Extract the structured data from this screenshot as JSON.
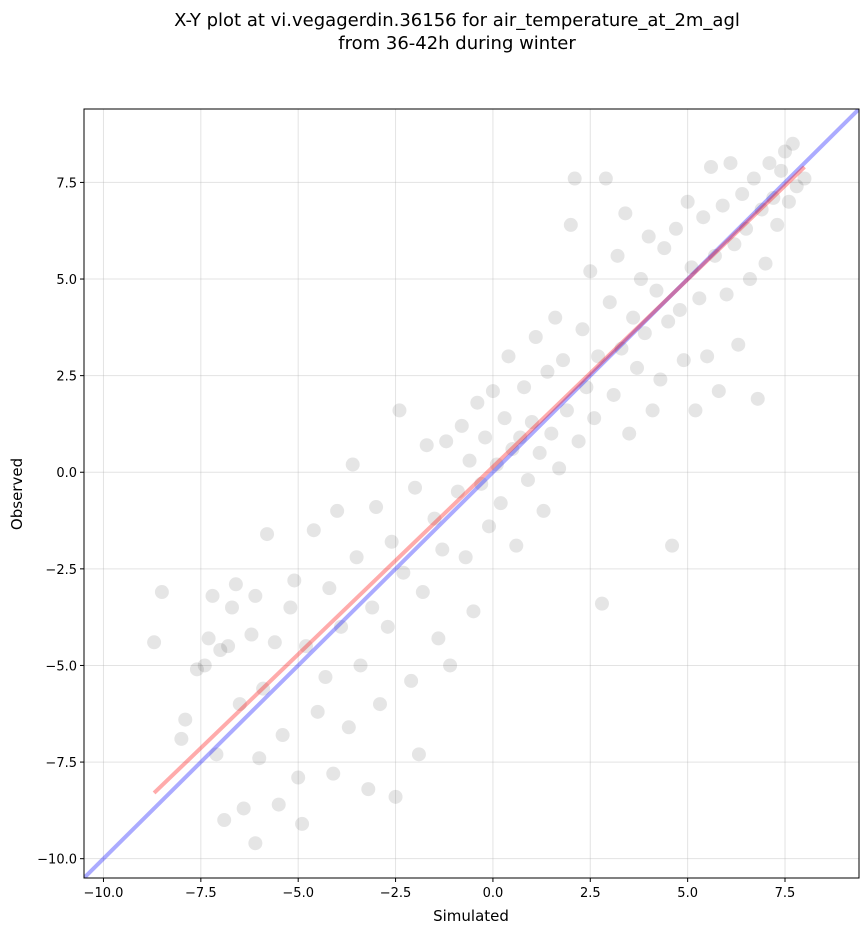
{
  "chart_data": {
    "type": "scatter",
    "title": [
      "X-Y plot at vi.vegagerdin.36156 for air_temperature_at_2m_agl",
      "from 36-42h during winter"
    ],
    "xlabel": "Simulated",
    "ylabel": "Observed",
    "xlim": [
      -10.5,
      9.4
    ],
    "ylim": [
      -10.5,
      9.4
    ],
    "xticks": [
      -10.0,
      -7.5,
      -5.0,
      -2.5,
      0.0,
      2.5,
      5.0,
      7.5
    ],
    "xtick_labels": [
      "−10.0",
      "−7.5",
      "−5.0",
      "−2.5",
      "0.0",
      "2.5",
      "5.0",
      "7.5"
    ],
    "yticks": [
      -10.0,
      -7.5,
      -5.0,
      -2.5,
      0.0,
      2.5,
      5.0,
      7.5
    ],
    "ytick_labels": [
      "−10.0",
      "−7.5",
      "−5.0",
      "−2.5",
      "0.0",
      "2.5",
      "5.0",
      "7.5"
    ],
    "grid": true,
    "point_color": "#000000",
    "point_alpha": 0.1,
    "fit_line": {
      "x": [
        -8.7,
        8.0
      ],
      "y": [
        -8.3,
        7.9
      ],
      "color": "#ff0000"
    },
    "identity_line": {
      "x": [
        -10.5,
        9.4
      ],
      "y": [
        -10.5,
        9.4
      ],
      "color": "#0000ff"
    },
    "sample_points": [
      [
        -8.7,
        -4.4
      ],
      [
        -8.5,
        -3.1
      ],
      [
        -8.0,
        -6.9
      ],
      [
        -7.9,
        -6.4
      ],
      [
        -7.6,
        -5.1
      ],
      [
        -7.4,
        -5.0
      ],
      [
        -7.3,
        -4.3
      ],
      [
        -7.2,
        -3.2
      ],
      [
        -7.1,
        -7.3
      ],
      [
        -7.0,
        -4.6
      ],
      [
        -6.9,
        -9.0
      ],
      [
        -6.8,
        -4.5
      ],
      [
        -6.7,
        -3.5
      ],
      [
        -6.6,
        -2.9
      ],
      [
        -6.5,
        -6.0
      ],
      [
        -6.4,
        -8.7
      ],
      [
        -6.2,
        -4.2
      ],
      [
        -6.1,
        -9.6
      ],
      [
        -6.1,
        -3.2
      ],
      [
        -6.0,
        -7.4
      ],
      [
        -5.9,
        -5.6
      ],
      [
        -5.8,
        -1.6
      ],
      [
        -5.6,
        -4.4
      ],
      [
        -5.5,
        -8.6
      ],
      [
        -5.4,
        -6.8
      ],
      [
        -5.2,
        -3.5
      ],
      [
        -5.1,
        -2.8
      ],
      [
        -5.0,
        -7.9
      ],
      [
        -4.9,
        -9.1
      ],
      [
        -4.8,
        -4.5
      ],
      [
        -4.6,
        -1.5
      ],
      [
        -4.5,
        -6.2
      ],
      [
        -4.3,
        -5.3
      ],
      [
        -4.2,
        -3.0
      ],
      [
        -4.1,
        -7.8
      ],
      [
        -4.0,
        -1.0
      ],
      [
        -3.9,
        -4.0
      ],
      [
        -3.7,
        -6.6
      ],
      [
        -3.6,
        0.2
      ],
      [
        -3.5,
        -2.2
      ],
      [
        -3.4,
        -5.0
      ],
      [
        -3.2,
        -8.2
      ],
      [
        -3.1,
        -3.5
      ],
      [
        -3.0,
        -0.9
      ],
      [
        -2.9,
        -6.0
      ],
      [
        -2.7,
        -4.0
      ],
      [
        -2.6,
        -1.8
      ],
      [
        -2.5,
        -8.4
      ],
      [
        -2.4,
        1.6
      ],
      [
        -2.3,
        -2.6
      ],
      [
        -2.1,
        -5.4
      ],
      [
        -2.0,
        -0.4
      ],
      [
        -1.9,
        -7.3
      ],
      [
        -1.8,
        -3.1
      ],
      [
        -1.7,
        0.7
      ],
      [
        -1.5,
        -1.2
      ],
      [
        -1.4,
        -4.3
      ],
      [
        -1.3,
        -2.0
      ],
      [
        -1.2,
        0.8
      ],
      [
        -1.1,
        -5.0
      ],
      [
        -0.9,
        -0.5
      ],
      [
        -0.8,
        1.2
      ],
      [
        -0.7,
        -2.2
      ],
      [
        -0.6,
        0.3
      ],
      [
        -0.5,
        -3.6
      ],
      [
        -0.4,
        1.8
      ],
      [
        -0.3,
        -0.3
      ],
      [
        -0.2,
        0.9
      ],
      [
        -0.1,
        -1.4
      ],
      [
        0.0,
        2.1
      ],
      [
        0.1,
        0.2
      ],
      [
        0.2,
        -0.8
      ],
      [
        0.3,
        1.4
      ],
      [
        0.4,
        3.0
      ],
      [
        0.5,
        0.6
      ],
      [
        0.6,
        -1.9
      ],
      [
        0.7,
        0.9
      ],
      [
        0.8,
        2.2
      ],
      [
        0.9,
        -0.2
      ],
      [
        1.0,
        1.3
      ],
      [
        1.1,
        3.5
      ],
      [
        1.2,
        0.5
      ],
      [
        1.3,
        -1.0
      ],
      [
        1.4,
        2.6
      ],
      [
        1.5,
        1.0
      ],
      [
        1.6,
        4.0
      ],
      [
        1.7,
        0.1
      ],
      [
        1.8,
        2.9
      ],
      [
        1.9,
        1.6
      ],
      [
        2.0,
        6.4
      ],
      [
        2.1,
        7.6
      ],
      [
        2.2,
        0.8
      ],
      [
        2.3,
        3.7
      ],
      [
        2.4,
        2.2
      ],
      [
        2.5,
        5.2
      ],
      [
        2.6,
        1.4
      ],
      [
        2.7,
        3.0
      ],
      [
        2.8,
        -3.4
      ],
      [
        2.9,
        7.6
      ],
      [
        3.0,
        4.4
      ],
      [
        3.1,
        2.0
      ],
      [
        3.2,
        5.6
      ],
      [
        3.3,
        3.2
      ],
      [
        3.4,
        6.7
      ],
      [
        3.5,
        1.0
      ],
      [
        3.6,
        4.0
      ],
      [
        3.7,
        2.7
      ],
      [
        3.8,
        5.0
      ],
      [
        3.9,
        3.6
      ],
      [
        4.0,
        6.1
      ],
      [
        4.1,
        1.6
      ],
      [
        4.2,
        4.7
      ],
      [
        4.3,
        2.4
      ],
      [
        4.4,
        5.8
      ],
      [
        4.5,
        3.9
      ],
      [
        4.6,
        -1.9
      ],
      [
        4.7,
        6.3
      ],
      [
        4.8,
        4.2
      ],
      [
        4.9,
        2.9
      ],
      [
        5.0,
        7.0
      ],
      [
        5.1,
        5.3
      ],
      [
        5.2,
        1.6
      ],
      [
        5.3,
        4.5
      ],
      [
        5.4,
        6.6
      ],
      [
        5.5,
        3.0
      ],
      [
        5.6,
        7.9
      ],
      [
        5.7,
        5.6
      ],
      [
        5.8,
        2.1
      ],
      [
        5.9,
        6.9
      ],
      [
        6.0,
        4.6
      ],
      [
        6.1,
        8.0
      ],
      [
        6.2,
        5.9
      ],
      [
        6.3,
        3.3
      ],
      [
        6.4,
        7.2
      ],
      [
        6.5,
        6.3
      ],
      [
        6.6,
        5.0
      ],
      [
        6.7,
        7.6
      ],
      [
        6.8,
        1.9
      ],
      [
        6.9,
        6.8
      ],
      [
        7.0,
        5.4
      ],
      [
        7.1,
        8.0
      ],
      [
        7.2,
        7.1
      ],
      [
        7.3,
        6.4
      ],
      [
        7.4,
        7.8
      ],
      [
        7.5,
        8.3
      ],
      [
        7.6,
        7.0
      ],
      [
        7.7,
        8.5
      ],
      [
        7.8,
        7.4
      ],
      [
        8.0,
        7.6
      ]
    ]
  }
}
